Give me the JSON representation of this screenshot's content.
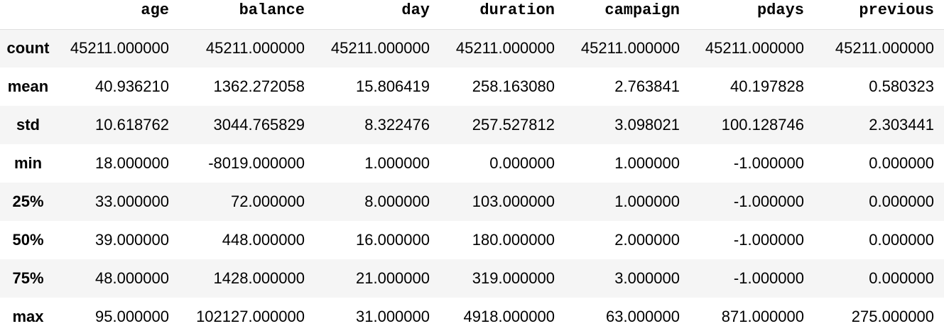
{
  "table": {
    "columns": [
      "age",
      "balance",
      "day",
      "duration",
      "campaign",
      "pdays",
      "previous"
    ],
    "rows": [
      {
        "label": "count",
        "values": [
          "45211.000000",
          "45211.000000",
          "45211.000000",
          "45211.000000",
          "45211.000000",
          "45211.000000",
          "45211.000000"
        ]
      },
      {
        "label": "mean",
        "values": [
          "40.936210",
          "1362.272058",
          "15.806419",
          "258.163080",
          "2.763841",
          "40.197828",
          "0.580323"
        ]
      },
      {
        "label": "std",
        "values": [
          "10.618762",
          "3044.765829",
          "8.322476",
          "257.527812",
          "3.098021",
          "100.128746",
          "2.303441"
        ]
      },
      {
        "label": "min",
        "values": [
          "18.000000",
          "-8019.000000",
          "1.000000",
          "0.000000",
          "1.000000",
          "-1.000000",
          "0.000000"
        ]
      },
      {
        "label": "25%",
        "values": [
          "33.000000",
          "72.000000",
          "8.000000",
          "103.000000",
          "1.000000",
          "-1.000000",
          "0.000000"
        ]
      },
      {
        "label": "50%",
        "values": [
          "39.000000",
          "448.000000",
          "16.000000",
          "180.000000",
          "2.000000",
          "-1.000000",
          "0.000000"
        ]
      },
      {
        "label": "75%",
        "values": [
          "48.000000",
          "1428.000000",
          "21.000000",
          "319.000000",
          "3.000000",
          "-1.000000",
          "0.000000"
        ]
      },
      {
        "label": "max",
        "values": [
          "95.000000",
          "102127.000000",
          "31.000000",
          "4918.000000",
          "63.000000",
          "871.000000",
          "275.000000"
        ]
      }
    ]
  }
}
